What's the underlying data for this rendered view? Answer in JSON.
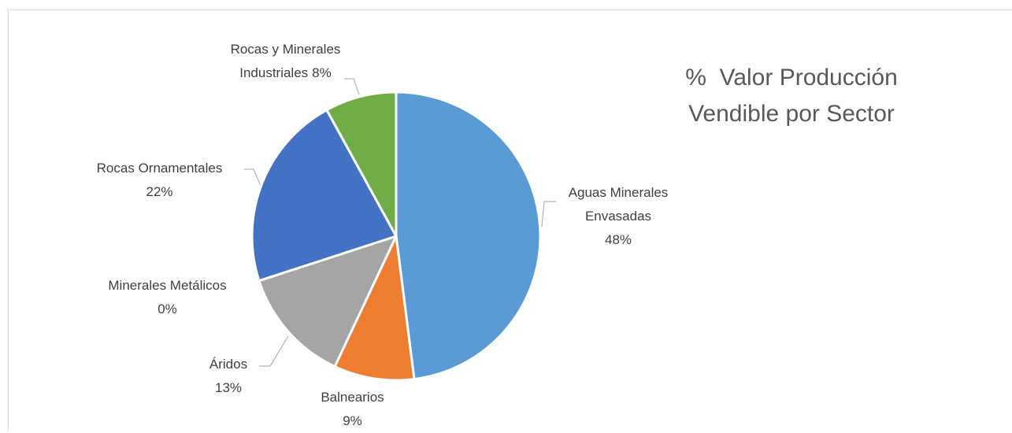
{
  "chart_data": {
    "type": "pie",
    "title": "%  Valor Producción Vendible por Sector",
    "categories": [
      "Aguas Minerales Envasadas",
      "Balnearios",
      "Áridos",
      "Minerales Metálicos",
      "Rocas Ornamentales",
      "Rocas y Minerales Industriales"
    ],
    "values": [
      48,
      9,
      13,
      0,
      22,
      8
    ],
    "value_labels": [
      "48%",
      "9%",
      "13%",
      "0%",
      "22%",
      "8%"
    ],
    "colors": [
      "#5b9bd5",
      "#ed7d31",
      "#a5a5a5",
      "#ffc000",
      "#4472c4",
      "#70ad47"
    ]
  }
}
